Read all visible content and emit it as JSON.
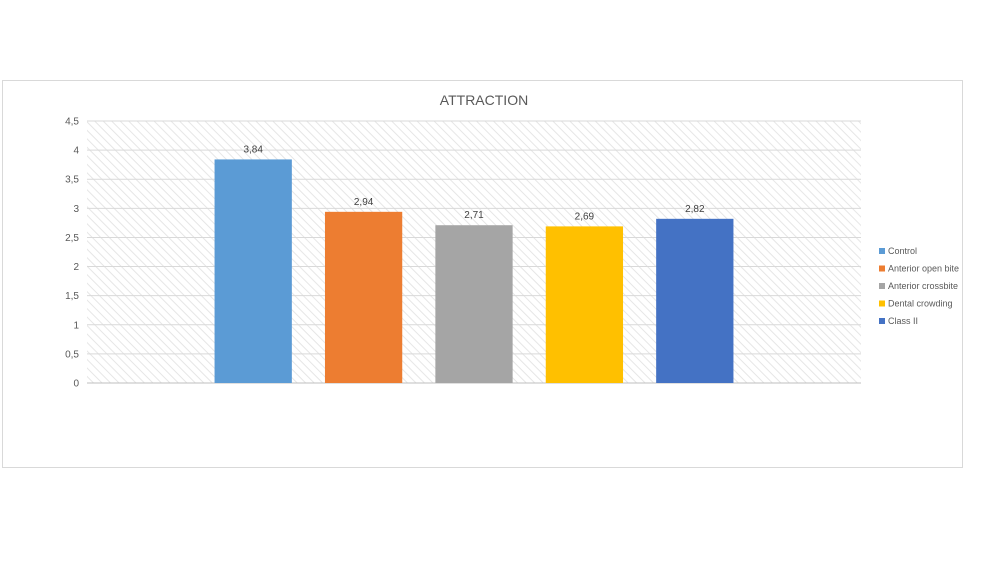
{
  "chart_data": {
    "type": "bar",
    "title": "ATTRACTION",
    "categories": [
      "Control",
      "Anterior open bite",
      "Anterior crossbite",
      "Dental crowding",
      "Class II"
    ],
    "values": [
      3.84,
      2.94,
      2.71,
      2.69,
      2.82
    ],
    "data_labels": [
      "3,84",
      "2,94",
      "2,71",
      "2,69",
      "2,82"
    ],
    "colors": [
      "#5b9bd5",
      "#ed7d31",
      "#a5a5a5",
      "#ffc000",
      "#4472c4"
    ],
    "ylim": [
      0,
      4.5
    ],
    "yticks": [
      "0",
      "0,5",
      "1",
      "1,5",
      "2",
      "2,5",
      "3",
      "3,5",
      "4",
      "4,5"
    ],
    "ytick_values": [
      0,
      0.5,
      1,
      1.5,
      2,
      2.5,
      3,
      3.5,
      4,
      4.5
    ],
    "grid": true,
    "legend_position": "right"
  }
}
